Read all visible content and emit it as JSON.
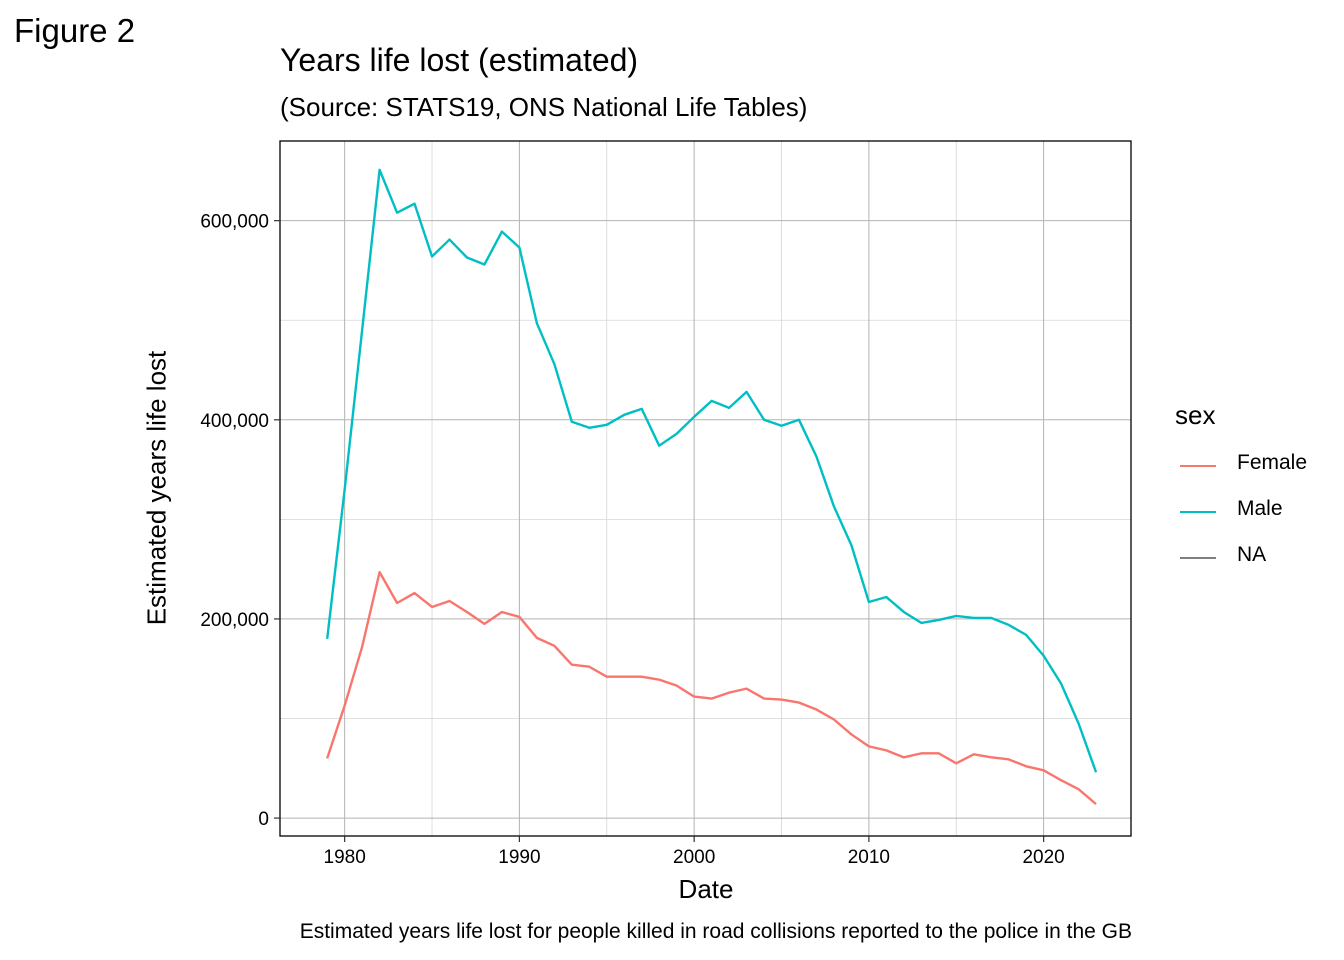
{
  "figure_label": "Figure 2",
  "chart_data": {
    "type": "line",
    "title": "Years life lost (estimated)",
    "subtitle": "(Source: STATS19, ONS National Life Tables)",
    "xlabel": "Date",
    "ylabel": "Estimated years life lost",
    "caption": "Estimated years life lost for people killed in road collisions reported to the police in the GB",
    "xlim": [
      1976.3,
      2025.0
    ],
    "ylim": [
      -18000,
      680000
    ],
    "x_ticks": [
      1980,
      1990,
      2000,
      2010,
      2020
    ],
    "x_tick_labels": [
      "1980",
      "1990",
      "2000",
      "2010",
      "2020"
    ],
    "y_ticks": [
      0,
      200000,
      400000,
      600000
    ],
    "y_tick_labels": [
      "0",
      "200,000",
      "400,000",
      "600,000"
    ],
    "grid": true,
    "legend": {
      "title": "sex",
      "position": "right",
      "entries": [
        {
          "label": "Female",
          "color": "#F8766D"
        },
        {
          "label": "Male",
          "color": "#00BFC4"
        },
        {
          "label": "NA",
          "color": "#7F7F7F"
        }
      ]
    },
    "x": [
      1979,
      1980,
      1981,
      1982,
      1983,
      1984,
      1985,
      1986,
      1987,
      1988,
      1989,
      1990,
      1991,
      1992,
      1993,
      1994,
      1995,
      1996,
      1997,
      1998,
      1999,
      2000,
      2001,
      2002,
      2003,
      2004,
      2005,
      2006,
      2007,
      2008,
      2009,
      2010,
      2011,
      2012,
      2013,
      2014,
      2015,
      2016,
      2017,
      2018,
      2019,
      2020,
      2021,
      2022,
      2023
    ],
    "series": [
      {
        "name": "Female",
        "color": "#F8766D",
        "values": [
          60000,
          113000,
          172000,
          247000,
          216000,
          226000,
          212000,
          218000,
          207000,
          195000,
          207000,
          202000,
          181000,
          173000,
          154000,
          152000,
          142000,
          142000,
          142000,
          139000,
          133000,
          122000,
          120000,
          126000,
          130000,
          120000,
          119000,
          116000,
          109000,
          99000,
          84000,
          72000,
          68000,
          61000,
          65000,
          65000,
          55000,
          64000,
          61000,
          59000,
          52000,
          48000,
          38000,
          29000,
          14000
        ]
      },
      {
        "name": "Male",
        "color": "#00BFC4",
        "values": [
          180000,
          330000,
          490000,
          651000,
          608000,
          617000,
          564000,
          581000,
          563000,
          556000,
          589000,
          573000,
          497000,
          456000,
          398000,
          392000,
          395000,
          405000,
          411000,
          374000,
          386000,
          403000,
          419000,
          412000,
          428000,
          400000,
          394000,
          400000,
          363000,
          313000,
          274000,
          217000,
          222000,
          207000,
          196000,
          199000,
          203000,
          201000,
          201000,
          194000,
          184000,
          163000,
          135000,
          95000,
          46000
        ]
      }
    ]
  }
}
